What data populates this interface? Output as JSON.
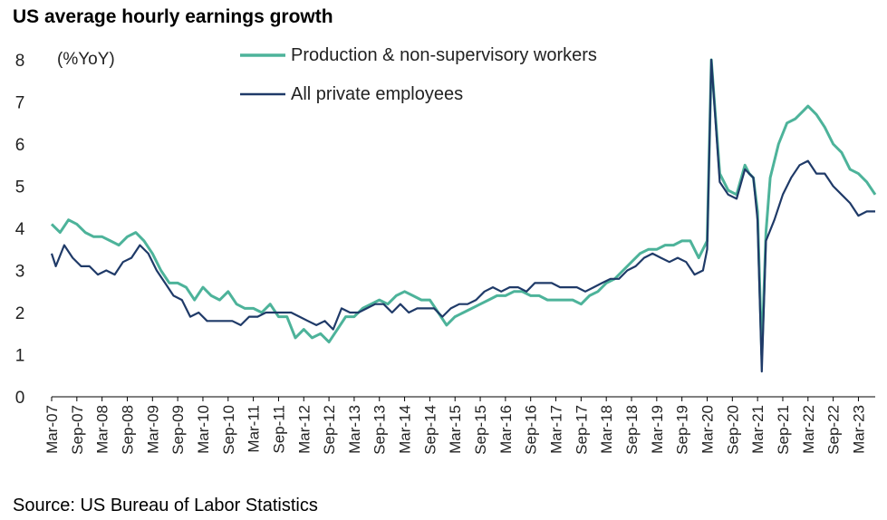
{
  "chart_data": {
    "type": "line",
    "title": "US average hourly earnings growth",
    "ylabel": "(%YoY)",
    "source": "Source: US Bureau of Labor Statistics",
    "ylim": [
      0,
      8
    ],
    "yticks": [
      "0",
      "1",
      "2",
      "3",
      "4",
      "5",
      "6",
      "7",
      "8"
    ],
    "xlim": [
      "2007-03",
      "2023-07"
    ],
    "xtick_labels": [
      "Mar-07",
      "Sep-07",
      "Mar-08",
      "Sep-08",
      "Mar-09",
      "Sep-09",
      "Mar-10",
      "Sep-10",
      "Mar-11",
      "Sep-11",
      "Mar-12",
      "Sep-12",
      "Mar-13",
      "Sep-13",
      "Mar-14",
      "Sep-14",
      "Mar-15",
      "Sep-15",
      "Mar-16",
      "Sep-16",
      "Mar-17",
      "Sep-17",
      "Mar-18",
      "Sep-18",
      "Mar-19",
      "Sep-19",
      "Mar-20",
      "Sep-20",
      "Mar-21",
      "Sep-21",
      "Mar-22",
      "Sep-22",
      "Mar-23"
    ],
    "grid": false,
    "legend_position": "top",
    "series": [
      {
        "name": "Production & non-supervisory workers",
        "color": "#4DB39A",
        "points": [
          [
            "2007-03",
            4.1
          ],
          [
            "2007-05",
            3.9
          ],
          [
            "2007-07",
            4.2
          ],
          [
            "2007-09",
            4.1
          ],
          [
            "2007-11",
            3.9
          ],
          [
            "2008-01",
            3.8
          ],
          [
            "2008-03",
            3.8
          ],
          [
            "2008-05",
            3.7
          ],
          [
            "2008-07",
            3.6
          ],
          [
            "2008-09",
            3.8
          ],
          [
            "2008-11",
            3.9
          ],
          [
            "2009-01",
            3.7
          ],
          [
            "2009-03",
            3.4
          ],
          [
            "2009-05",
            3.0
          ],
          [
            "2009-07",
            2.7
          ],
          [
            "2009-09",
            2.7
          ],
          [
            "2009-11",
            2.6
          ],
          [
            "2010-01",
            2.3
          ],
          [
            "2010-03",
            2.6
          ],
          [
            "2010-05",
            2.4
          ],
          [
            "2010-07",
            2.3
          ],
          [
            "2010-09",
            2.5
          ],
          [
            "2010-11",
            2.2
          ],
          [
            "2011-01",
            2.1
          ],
          [
            "2011-03",
            2.1
          ],
          [
            "2011-05",
            2.0
          ],
          [
            "2011-07",
            2.2
          ],
          [
            "2011-09",
            1.9
          ],
          [
            "2011-11",
            1.9
          ],
          [
            "2012-01",
            1.4
          ],
          [
            "2012-03",
            1.6
          ],
          [
            "2012-05",
            1.4
          ],
          [
            "2012-07",
            1.5
          ],
          [
            "2012-09",
            1.3
          ],
          [
            "2012-11",
            1.6
          ],
          [
            "2013-01",
            1.9
          ],
          [
            "2013-03",
            1.9
          ],
          [
            "2013-05",
            2.1
          ],
          [
            "2013-07",
            2.2
          ],
          [
            "2013-09",
            2.3
          ],
          [
            "2013-11",
            2.2
          ],
          [
            "2014-01",
            2.4
          ],
          [
            "2014-03",
            2.5
          ],
          [
            "2014-05",
            2.4
          ],
          [
            "2014-07",
            2.3
          ],
          [
            "2014-09",
            2.3
          ],
          [
            "2014-11",
            2.0
          ],
          [
            "2015-01",
            1.7
          ],
          [
            "2015-03",
            1.9
          ],
          [
            "2015-05",
            2.0
          ],
          [
            "2015-07",
            2.1
          ],
          [
            "2015-09",
            2.2
          ],
          [
            "2015-11",
            2.3
          ],
          [
            "2016-01",
            2.4
          ],
          [
            "2016-03",
            2.4
          ],
          [
            "2016-05",
            2.5
          ],
          [
            "2016-07",
            2.5
          ],
          [
            "2016-09",
            2.4
          ],
          [
            "2016-11",
            2.4
          ],
          [
            "2017-01",
            2.3
          ],
          [
            "2017-03",
            2.3
          ],
          [
            "2017-05",
            2.3
          ],
          [
            "2017-07",
            2.3
          ],
          [
            "2017-09",
            2.2
          ],
          [
            "2017-11",
            2.4
          ],
          [
            "2018-01",
            2.5
          ],
          [
            "2018-03",
            2.7
          ],
          [
            "2018-05",
            2.8
          ],
          [
            "2018-07",
            3.0
          ],
          [
            "2018-09",
            3.2
          ],
          [
            "2018-11",
            3.4
          ],
          [
            "2019-01",
            3.5
          ],
          [
            "2019-03",
            3.5
          ],
          [
            "2019-05",
            3.6
          ],
          [
            "2019-07",
            3.6
          ],
          [
            "2019-09",
            3.7
          ],
          [
            "2019-11",
            3.7
          ],
          [
            "2020-01",
            3.3
          ],
          [
            "2020-03",
            3.7
          ],
          [
            "2020-04",
            8.0
          ],
          [
            "2020-06",
            5.3
          ],
          [
            "2020-08",
            4.9
          ],
          [
            "2020-10",
            4.8
          ],
          [
            "2020-12",
            5.5
          ],
          [
            "2021-01",
            5.3
          ],
          [
            "2021-02",
            5.2
          ],
          [
            "2021-03",
            4.4
          ],
          [
            "2021-04",
            1.0
          ],
          [
            "2021-05",
            3.9
          ],
          [
            "2021-06",
            5.2
          ],
          [
            "2021-08",
            6.0
          ],
          [
            "2021-10",
            6.5
          ],
          [
            "2021-12",
            6.6
          ],
          [
            "2022-02",
            6.8
          ],
          [
            "2022-03",
            6.9
          ],
          [
            "2022-05",
            6.7
          ],
          [
            "2022-07",
            6.4
          ],
          [
            "2022-09",
            6.0
          ],
          [
            "2022-11",
            5.8
          ],
          [
            "2023-01",
            5.4
          ],
          [
            "2023-03",
            5.3
          ],
          [
            "2023-05",
            5.1
          ],
          [
            "2023-07",
            4.8
          ]
        ]
      },
      {
        "name": "All private employees",
        "color": "#1F3A68",
        "points": [
          [
            "2007-03",
            3.4
          ],
          [
            "2007-04",
            3.1
          ],
          [
            "2007-06",
            3.6
          ],
          [
            "2007-08",
            3.3
          ],
          [
            "2007-10",
            3.1
          ],
          [
            "2007-12",
            3.1
          ],
          [
            "2008-02",
            2.9
          ],
          [
            "2008-04",
            3.0
          ],
          [
            "2008-06",
            2.9
          ],
          [
            "2008-08",
            3.2
          ],
          [
            "2008-10",
            3.3
          ],
          [
            "2008-12",
            3.6
          ],
          [
            "2009-02",
            3.4
          ],
          [
            "2009-04",
            3.0
          ],
          [
            "2009-06",
            2.7
          ],
          [
            "2009-08",
            2.4
          ],
          [
            "2009-10",
            2.3
          ],
          [
            "2009-12",
            1.9
          ],
          [
            "2010-02",
            2.0
          ],
          [
            "2010-04",
            1.8
          ],
          [
            "2010-06",
            1.8
          ],
          [
            "2010-08",
            1.8
          ],
          [
            "2010-10",
            1.8
          ],
          [
            "2010-12",
            1.7
          ],
          [
            "2011-02",
            1.9
          ],
          [
            "2011-04",
            1.9
          ],
          [
            "2011-06",
            2.0
          ],
          [
            "2011-08",
            2.0
          ],
          [
            "2011-10",
            2.0
          ],
          [
            "2011-12",
            2.0
          ],
          [
            "2012-02",
            1.9
          ],
          [
            "2012-04",
            1.8
          ],
          [
            "2012-06",
            1.7
          ],
          [
            "2012-08",
            1.8
          ],
          [
            "2012-10",
            1.6
          ],
          [
            "2012-12",
            2.1
          ],
          [
            "2013-02",
            2.0
          ],
          [
            "2013-04",
            2.0
          ],
          [
            "2013-06",
            2.1
          ],
          [
            "2013-08",
            2.2
          ],
          [
            "2013-10",
            2.2
          ],
          [
            "2013-12",
            2.0
          ],
          [
            "2014-02",
            2.2
          ],
          [
            "2014-04",
            2.0
          ],
          [
            "2014-06",
            2.1
          ],
          [
            "2014-08",
            2.1
          ],
          [
            "2014-10",
            2.1
          ],
          [
            "2014-12",
            1.9
          ],
          [
            "2015-02",
            2.1
          ],
          [
            "2015-04",
            2.2
          ],
          [
            "2015-06",
            2.2
          ],
          [
            "2015-08",
            2.3
          ],
          [
            "2015-10",
            2.5
          ],
          [
            "2015-12",
            2.6
          ],
          [
            "2016-02",
            2.5
          ],
          [
            "2016-04",
            2.6
          ],
          [
            "2016-06",
            2.6
          ],
          [
            "2016-08",
            2.5
          ],
          [
            "2016-10",
            2.7
          ],
          [
            "2016-12",
            2.7
          ],
          [
            "2017-02",
            2.7
          ],
          [
            "2017-04",
            2.6
          ],
          [
            "2017-06",
            2.6
          ],
          [
            "2017-08",
            2.6
          ],
          [
            "2017-10",
            2.5
          ],
          [
            "2017-12",
            2.6
          ],
          [
            "2018-02",
            2.7
          ],
          [
            "2018-04",
            2.8
          ],
          [
            "2018-06",
            2.8
          ],
          [
            "2018-08",
            3.0
          ],
          [
            "2018-10",
            3.1
          ],
          [
            "2018-12",
            3.3
          ],
          [
            "2019-02",
            3.4
          ],
          [
            "2019-04",
            3.3
          ],
          [
            "2019-06",
            3.2
          ],
          [
            "2019-08",
            3.3
          ],
          [
            "2019-10",
            3.2
          ],
          [
            "2019-12",
            2.9
          ],
          [
            "2020-02",
            3.0
          ],
          [
            "2020-03",
            3.5
          ],
          [
            "2020-04",
            8.0
          ],
          [
            "2020-06",
            5.1
          ],
          [
            "2020-08",
            4.8
          ],
          [
            "2020-10",
            4.7
          ],
          [
            "2020-12",
            5.4
          ],
          [
            "2021-02",
            5.2
          ],
          [
            "2021-03",
            4.2
          ],
          [
            "2021-04",
            0.6
          ],
          [
            "2021-05",
            3.7
          ],
          [
            "2021-07",
            4.2
          ],
          [
            "2021-09",
            4.8
          ],
          [
            "2021-11",
            5.2
          ],
          [
            "2022-01",
            5.5
          ],
          [
            "2022-03",
            5.6
          ],
          [
            "2022-05",
            5.3
          ],
          [
            "2022-07",
            5.3
          ],
          [
            "2022-09",
            5.0
          ],
          [
            "2022-11",
            4.8
          ],
          [
            "2023-01",
            4.6
          ],
          [
            "2023-03",
            4.3
          ],
          [
            "2023-05",
            4.4
          ],
          [
            "2023-07",
            4.4
          ]
        ]
      }
    ]
  }
}
